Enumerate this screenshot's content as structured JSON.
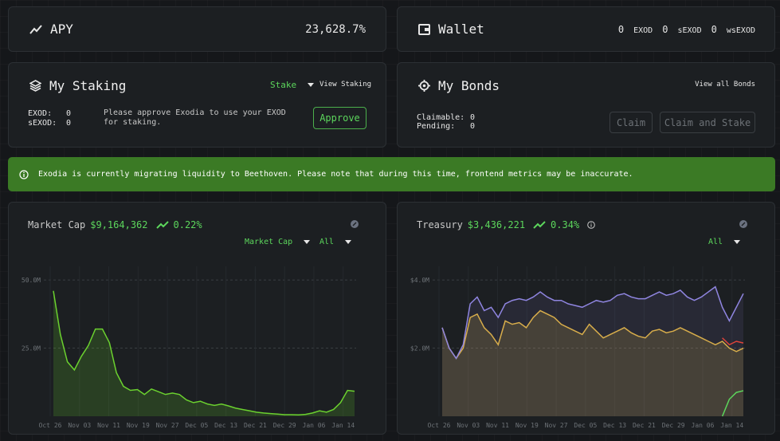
{
  "apy": {
    "label": "APY",
    "value": "23,628.7%"
  },
  "wallet": {
    "label": "Wallet",
    "balances": [
      {
        "amount": "0",
        "token": "EXOD"
      },
      {
        "amount": "0",
        "token": "sEXOD"
      },
      {
        "amount": "0",
        "token": "wsEXOD"
      }
    ]
  },
  "staking": {
    "title": "My Staking",
    "dropdown": "Stake",
    "view_link": "View Staking",
    "exod_label": "EXOD:",
    "exod_value": "0",
    "sexod_label": "sEXOD:",
    "sexod_value": "0",
    "message": "Please approve Exodia to use your EXOD for staking.",
    "approve": "Approve"
  },
  "bonds": {
    "title": "My Bonds",
    "view_link": "View all Bonds",
    "claimable_label": "Claimable:",
    "claimable_value": "0",
    "pending_label": "Pending:",
    "pending_value": "0",
    "claim": "Claim",
    "claim_stake": "Claim and Stake"
  },
  "banner": {
    "text": "Exodia is currently migrating liquidity to Beethoven. Please note that during this time, frontend metrics may be inaccurate."
  },
  "market": {
    "label": "Market Cap",
    "value": "$9,164,362",
    "change": "0.22%",
    "select_metric": "Market Cap",
    "select_range": "All"
  },
  "treasury": {
    "label": "Treasury",
    "value": "$3,436,221",
    "change": "0.34%",
    "select_range": "All"
  },
  "colors": {
    "accent": "#5cd65c",
    "banner_bg": "#3b7a25",
    "card_bg": "#1c1f22"
  },
  "chart_data": [
    {
      "type": "area",
      "title": "Market Cap",
      "y_ticks": [
        "50.0M",
        "25.0M"
      ],
      "ylim": [
        0,
        55000000
      ],
      "x_ticks": [
        "Oct 26",
        "Nov 03",
        "Nov 11",
        "Nov 19",
        "Nov 27",
        "Dec 05",
        "Dec 13",
        "Dec 21",
        "Dec 29",
        "Jan 06",
        "Jan 14"
      ],
      "grid": true,
      "series": [
        {
          "color": "#6bd12f",
          "values": [
            46000000,
            30000000,
            20000000,
            17000000,
            22000000,
            26000000,
            32000000,
            32000000,
            27000000,
            16000000,
            11000000,
            9500000,
            9800000,
            8000000,
            10000000,
            9000000,
            8000000,
            8500000,
            8000000,
            6000000,
            5000000,
            5500000,
            4500000,
            4000000,
            4500000,
            3800000,
            3000000,
            2500000,
            2000000,
            1500000,
            1200000,
            1000000,
            800000,
            600000,
            600000,
            500000,
            700000,
            1200000,
            2000000,
            1500000,
            2500000,
            5000000,
            9500000,
            9164362
          ]
        }
      ]
    },
    {
      "type": "area",
      "title": "Treasury",
      "y_ticks": [
        "$4.0M",
        "$2.0M"
      ],
      "ylim": [
        0,
        4400000
      ],
      "x_ticks": [
        "Oct 26",
        "Nov 03",
        "Nov 11",
        "Nov 19",
        "Nov 27",
        "Dec 05",
        "Dec 13",
        "Dec 21",
        "Dec 29",
        "Jan 06",
        "Jan 14"
      ],
      "grid": true,
      "series": [
        {
          "color": "#e0b23a",
          "values": [
            2600000,
            2000000,
            1700000,
            2000000,
            2900000,
            3000000,
            2600000,
            2400000,
            2100000,
            2800000,
            2700000,
            2750000,
            2600000,
            2900000,
            3100000,
            3000000,
            2900000,
            2700000,
            2600000,
            2500000,
            2400000,
            2700000,
            2500000,
            2300000,
            2400000,
            2500000,
            2600000,
            2450000,
            2350000,
            2300000,
            2500000,
            2550000,
            2450000,
            2500000,
            2600000,
            2500000,
            2400000,
            2300000,
            2200000,
            2100000,
            2200000,
            2000000,
            1900000,
            2000000
          ]
        },
        {
          "color": "#8f85e0",
          "values": [
            2600000,
            2000000,
            1700000,
            2100000,
            3300000,
            3500000,
            3100000,
            3200000,
            2900000,
            3300000,
            3400000,
            3450000,
            3400000,
            3500000,
            3650000,
            3500000,
            3400000,
            3400000,
            3300000,
            3250000,
            3200000,
            3300000,
            3400000,
            3350000,
            3400000,
            3550000,
            3600000,
            3500000,
            3450000,
            3450000,
            3550000,
            3650000,
            3550000,
            3600000,
            3700000,
            3500000,
            3400000,
            3500000,
            3650000,
            3800000,
            3200000,
            2800000,
            3200000,
            3600000
          ]
        },
        {
          "color": "#e0443a",
          "values": [
            null,
            null,
            null,
            null,
            null,
            null,
            null,
            null,
            null,
            null,
            null,
            null,
            null,
            null,
            null,
            null,
            null,
            null,
            null,
            null,
            null,
            null,
            null,
            null,
            null,
            null,
            null,
            null,
            null,
            null,
            null,
            null,
            null,
            null,
            null,
            null,
            null,
            null,
            null,
            null,
            2300000,
            2100000,
            2200000,
            2150000
          ]
        },
        {
          "color": "#5cd65c",
          "values": [
            null,
            null,
            null,
            null,
            null,
            null,
            null,
            null,
            null,
            null,
            null,
            null,
            null,
            null,
            null,
            null,
            null,
            null,
            null,
            null,
            null,
            null,
            null,
            null,
            null,
            null,
            null,
            null,
            null,
            null,
            null,
            null,
            null,
            null,
            null,
            null,
            null,
            null,
            null,
            null,
            0,
            500000,
            700000,
            750000
          ]
        }
      ]
    }
  ]
}
